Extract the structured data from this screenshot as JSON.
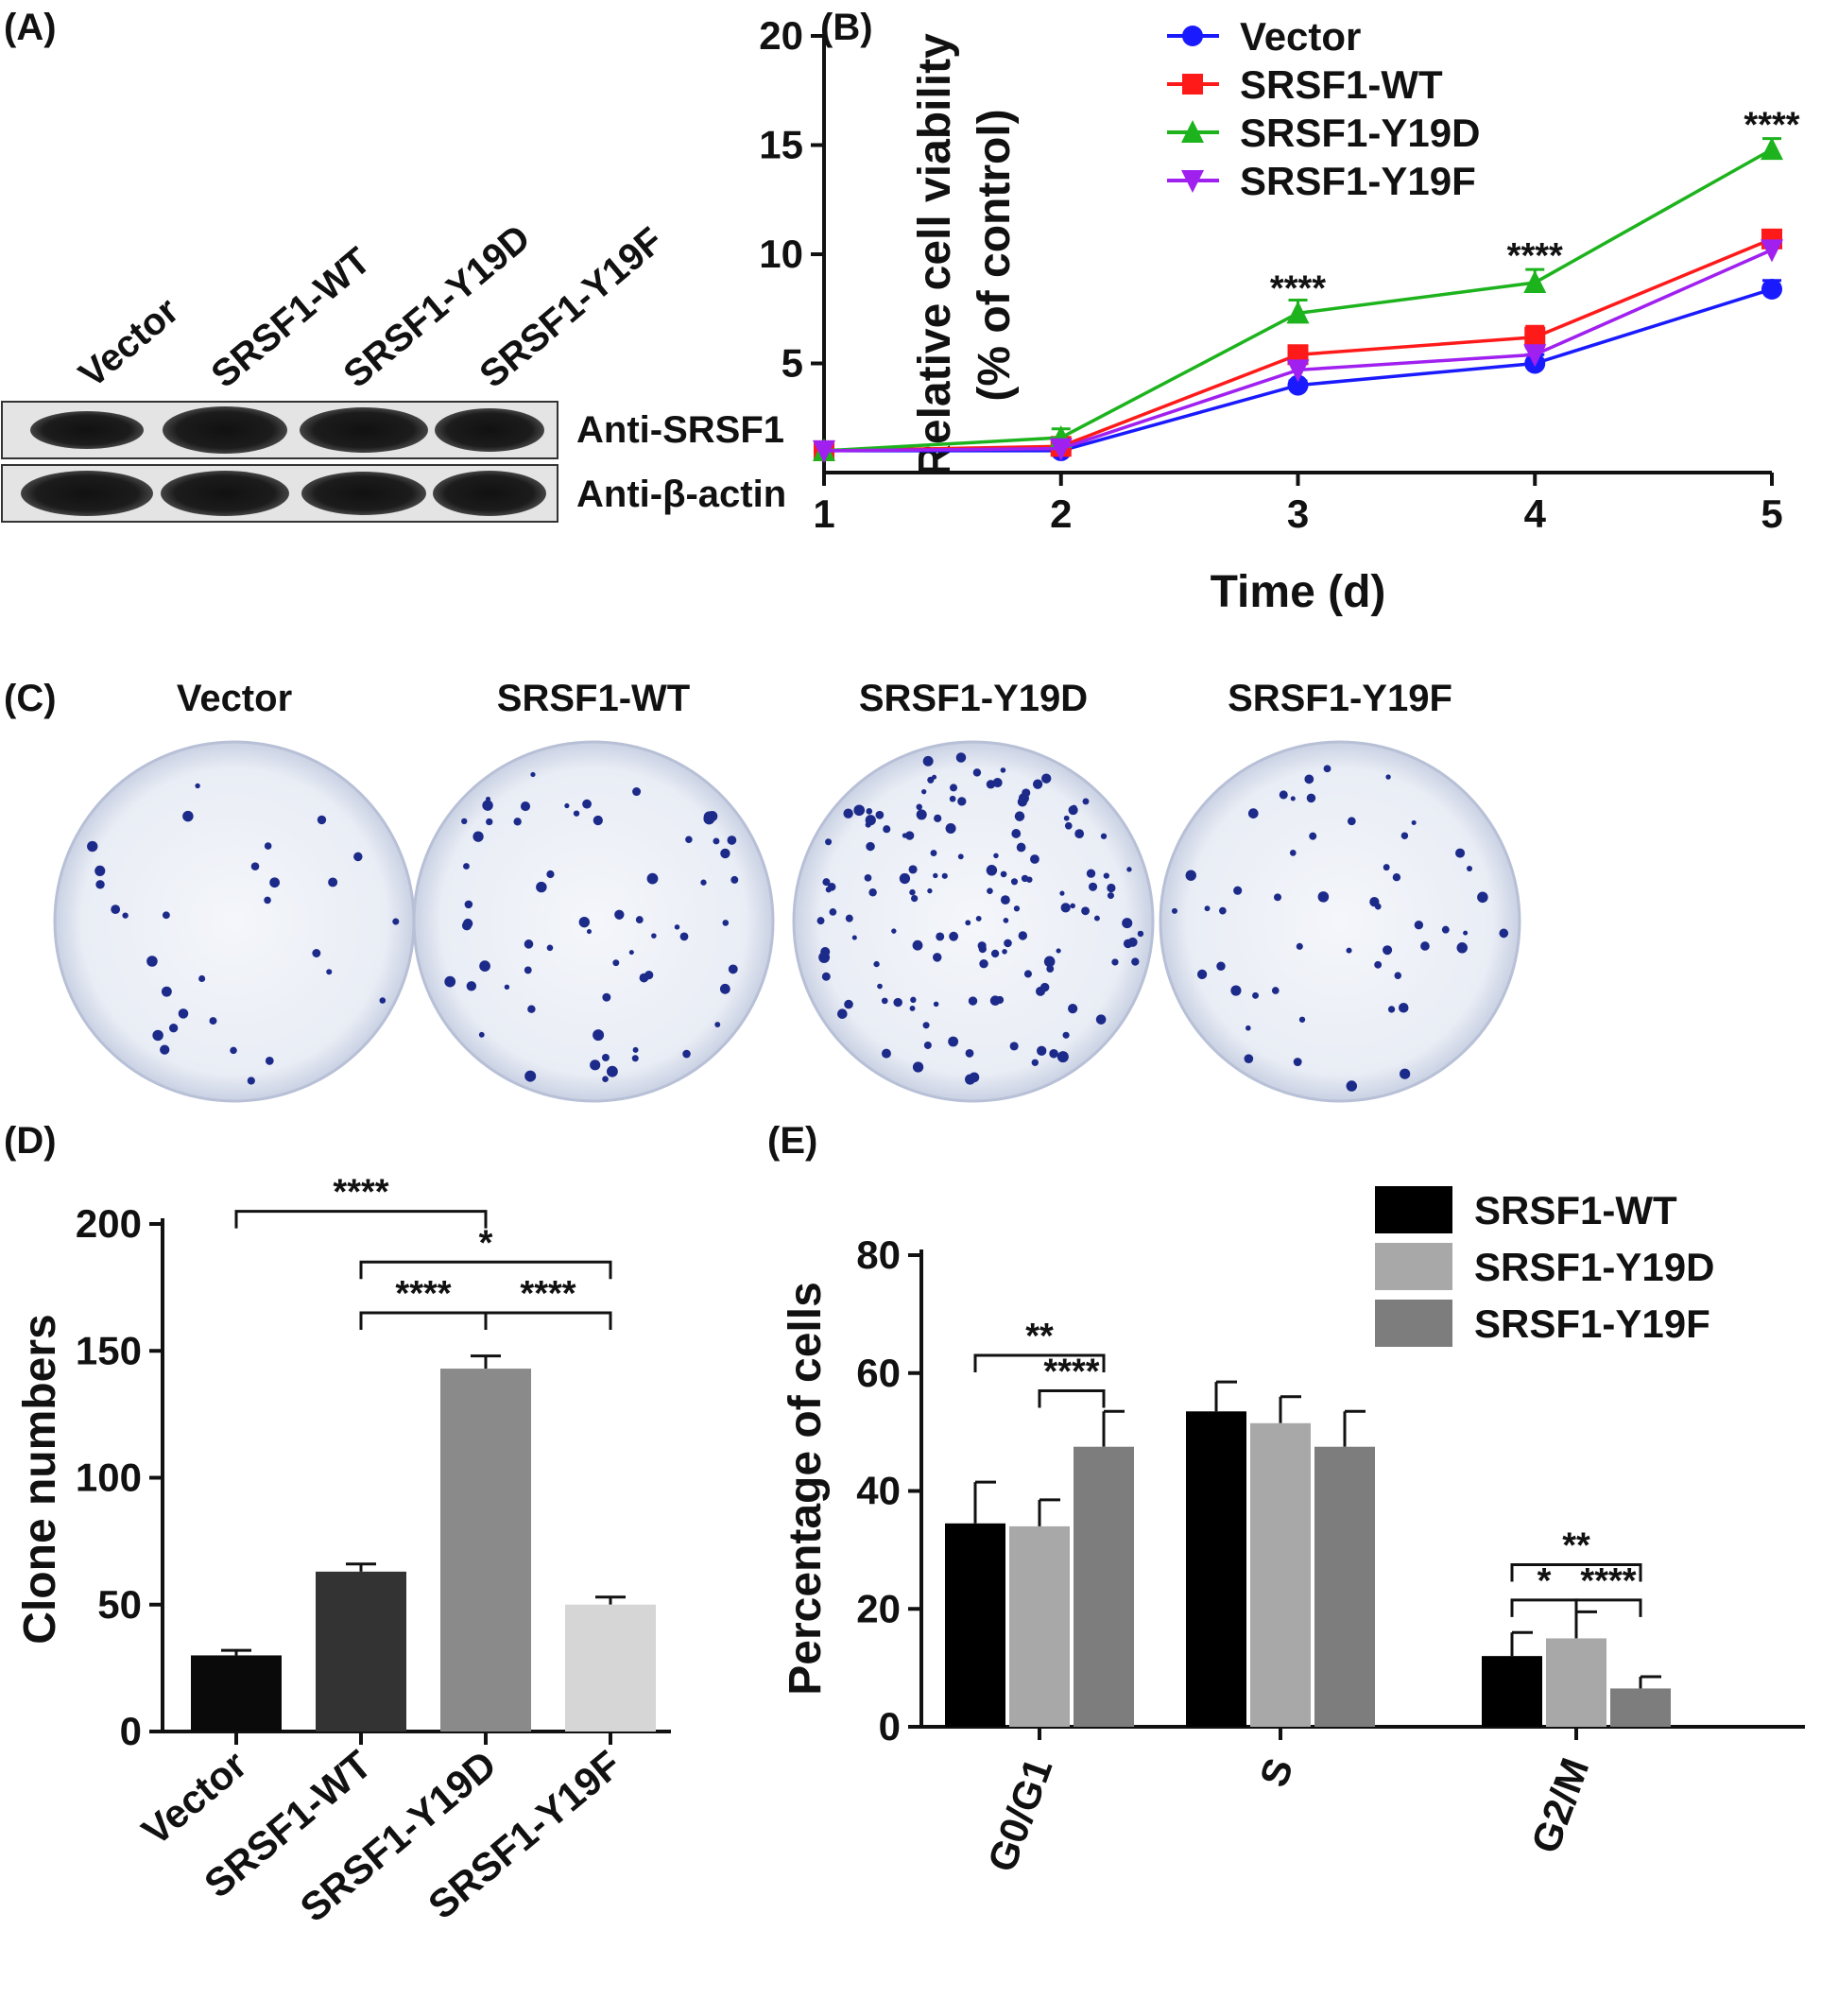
{
  "panels": {
    "A": {
      "label": "(A)",
      "lanes": [
        "Vector",
        "SRSF1-WT",
        "SRSF1-Y19D",
        "SRSF1-Y19F"
      ],
      "blots": [
        {
          "label": "Anti-SRSF1"
        },
        {
          "label": "Anti-β-actin"
        }
      ]
    },
    "C": {
      "label": "(C)",
      "dishes": [
        {
          "label": "Vector",
          "colonies": 30
        },
        {
          "label": "SRSF1-WT",
          "colonies": 63
        },
        {
          "label": "SRSF1-Y19D",
          "colonies": 143
        },
        {
          "label": "SRSF1-Y19F",
          "colonies": 50
        }
      ]
    }
  },
  "chart_data": [
    {
      "panel": "(B)",
      "type": "line",
      "xlabel": "Time (d)",
      "ylabel": "Relative cell viability",
      "ylabel2": "(% of control)",
      "x": [
        1,
        2,
        3,
        4,
        5
      ],
      "xlim": [
        1,
        5
      ],
      "ylim": [
        0,
        20
      ],
      "yticks": [
        5,
        10,
        15,
        20
      ],
      "legend": "top-left",
      "series": [
        {
          "name": "Vector",
          "color": "#1a1aff",
          "marker": "circle",
          "values": [
            1.0,
            1.0,
            4.0,
            5.0,
            8.4
          ],
          "err": [
            0.1,
            0.1,
            0.2,
            0.4,
            0.4
          ]
        },
        {
          "name": "SRSF1-WT",
          "color": "#ff1a1a",
          "marker": "square",
          "values": [
            1.0,
            1.2,
            5.4,
            6.2,
            10.7
          ],
          "err": [
            0.1,
            0.1,
            0.2,
            0.5,
            0.3
          ]
        },
        {
          "name": "SRSF1-Y19D",
          "color": "#1db31d",
          "marker": "triangle-up",
          "values": [
            1.0,
            1.6,
            7.3,
            8.7,
            14.8
          ],
          "err": [
            0.1,
            0.4,
            0.6,
            0.6,
            0.5
          ]
        },
        {
          "name": "SRSF1-Y19F",
          "color": "#a020f0",
          "marker": "triangle-down",
          "values": [
            1.0,
            1.1,
            4.7,
            5.4,
            10.2
          ],
          "err": [
            0.1,
            0.1,
            0.3,
            0.3,
            0.4
          ]
        }
      ],
      "annotations": [
        {
          "x": 3,
          "y": 8.5,
          "text": "****"
        },
        {
          "x": 4,
          "y": 10.0,
          "text": "****"
        },
        {
          "x": 5,
          "y": 16.0,
          "text": "****"
        }
      ]
    },
    {
      "panel": "(D)",
      "type": "bar",
      "ylabel": "Clone numbers",
      "categories": [
        "Vector",
        "SRSF1-WT",
        "SRSF1-Y19D",
        "SRSF1-Y19F"
      ],
      "values": [
        30,
        63,
        143,
        50
      ],
      "err": [
        2,
        3,
        5,
        3
      ],
      "colors": [
        "#0a0a0a",
        "#333333",
        "#8a8a8a",
        "#d6d6d6"
      ],
      "ylim": [
        0,
        200
      ],
      "yticks": [
        0,
        50,
        100,
        150,
        200
      ],
      "brackets": [
        {
          "from": 0,
          "to": 2,
          "y": 205,
          "text": "****"
        },
        {
          "from": 1,
          "to": 3,
          "y": 185,
          "text": "*"
        },
        {
          "from": 1,
          "to": 2,
          "y": 165,
          "text": "****"
        },
        {
          "from": 2,
          "to": 3,
          "y": 165,
          "text": "****"
        }
      ]
    },
    {
      "panel": "(E)",
      "type": "bar",
      "ylabel": "Percentage of cells",
      "categories": [
        "G0/G1",
        "S",
        "G2/M"
      ],
      "ylim": [
        0,
        80
      ],
      "yticks": [
        0,
        20,
        40,
        60,
        80
      ],
      "legend": "top-right",
      "series": [
        {
          "name": "SRSF1-WT",
          "color": "#000000",
          "values": [
            34.5,
            53.5,
            12
          ],
          "err": [
            7,
            5,
            4
          ]
        },
        {
          "name": "SRSF1-Y19D",
          "color": "#a8a8a8",
          "values": [
            34,
            51.5,
            15
          ],
          "err": [
            4.5,
            4.5,
            4.5
          ]
        },
        {
          "name": "SRSF1-Y19F",
          "color": "#7d7d7d",
          "values": [
            47.5,
            47.5,
            6.5
          ],
          "err": [
            6,
            6,
            2
          ]
        }
      ],
      "brackets": [
        {
          "group": 0,
          "from": 0,
          "to": 2,
          "y": 63,
          "text": "**"
        },
        {
          "group": 0,
          "from": 1,
          "to": 2,
          "y": 57,
          "text": "****"
        },
        {
          "group": 2,
          "from": 0,
          "to": 2,
          "y": 27.5,
          "text": "**"
        },
        {
          "group": 2,
          "from": 0,
          "to": 1,
          "y": 21.5,
          "text": "*"
        },
        {
          "group": 2,
          "from": 1,
          "to": 2,
          "y": 21.5,
          "text": "****"
        }
      ]
    }
  ]
}
